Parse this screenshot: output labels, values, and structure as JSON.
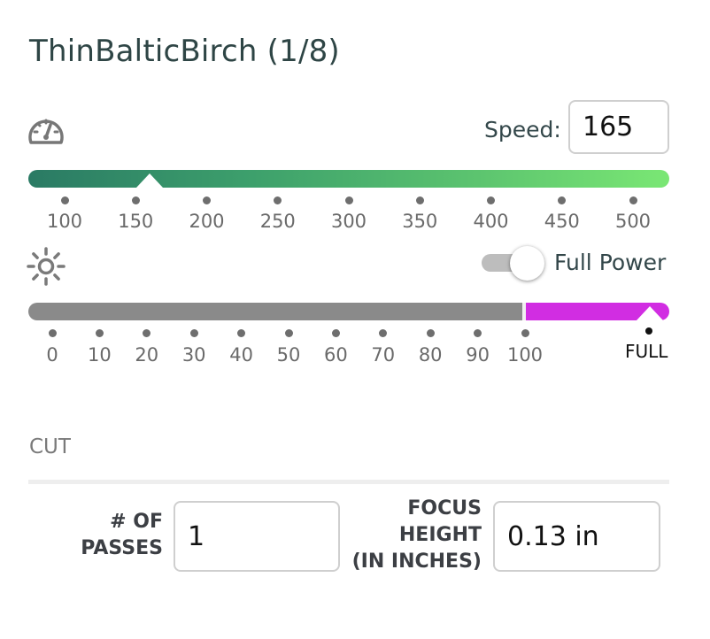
{
  "material": {
    "title": "ThinBalticBirch (1/8)"
  },
  "speed": {
    "label": "Speed:",
    "value": "165",
    "ticks": [
      "100",
      "150",
      "200",
      "250",
      "300",
      "350",
      "400",
      "450",
      "500"
    ],
    "track_colors": [
      "#2a7a64",
      "#7ae774"
    ]
  },
  "power": {
    "toggle_label": "Full Power",
    "toggle_on": true,
    "ticks": [
      "0",
      "10",
      "20",
      "30",
      "40",
      "50",
      "60",
      "70",
      "80",
      "90",
      "100"
    ],
    "full_label": "FULL",
    "track_color": "#8a8a8a",
    "full_color": "#d12de2"
  },
  "cut": {
    "section_label": "CUT",
    "passes_label_line1": "# OF",
    "passes_label_line2": "PASSES",
    "passes_value": "1",
    "focus_label_line1": "FOCUS",
    "focus_label_line2": "HEIGHT",
    "focus_label_line3": "(IN INCHES)",
    "focus_value": "0.13 in"
  },
  "icons": {
    "speed": "gauge-icon",
    "power": "sun-icon"
  }
}
